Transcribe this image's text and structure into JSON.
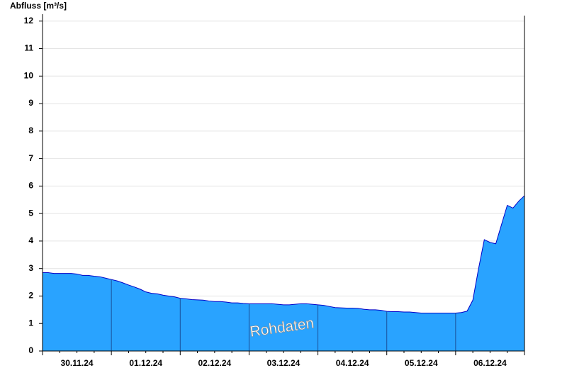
{
  "chart_data": {
    "type": "area",
    "y_label": "Abfluss [m³/s]",
    "annotation": "Rohdaten",
    "categories": [
      null,
      null,
      null,
      null,
      null,
      null,
      "30.11.24",
      null,
      null,
      null,
      null,
      null,
      null,
      null,
      null,
      null,
      null,
      null,
      "01.12.24",
      null,
      null,
      null,
      null,
      null,
      null,
      null,
      null,
      null,
      null,
      null,
      "02.12.24",
      null,
      null,
      null,
      null,
      null,
      null,
      null,
      null,
      null,
      null,
      null,
      "03.12.24",
      null,
      null,
      null,
      null,
      null,
      null,
      null,
      null,
      null,
      null,
      null,
      "04.12.24",
      null,
      null,
      null,
      null,
      null,
      null,
      null,
      null,
      null,
      null,
      null,
      "05.12.24",
      null,
      null,
      null,
      null,
      null,
      null,
      null,
      null,
      null,
      null,
      null,
      "06.12.24",
      null,
      null,
      null,
      null,
      null,
      null
    ],
    "series": [
      {
        "color": "#29a3ff",
        "line_color": "#0000c8",
        "values": [
          2.85,
          2.85,
          2.82,
          2.82,
          2.82,
          2.82,
          2.8,
          2.75,
          2.75,
          2.72,
          2.7,
          2.65,
          2.6,
          2.55,
          2.48,
          2.4,
          2.33,
          2.25,
          2.15,
          2.1,
          2.08,
          2.03,
          2.0,
          1.97,
          1.92,
          1.9,
          1.87,
          1.86,
          1.85,
          1.82,
          1.8,
          1.8,
          1.78,
          1.75,
          1.75,
          1.73,
          1.72,
          1.72,
          1.72,
          1.72,
          1.72,
          1.7,
          1.68,
          1.68,
          1.7,
          1.72,
          1.72,
          1.7,
          1.68,
          1.66,
          1.62,
          1.58,
          1.57,
          1.56,
          1.56,
          1.55,
          1.52,
          1.5,
          1.5,
          1.48,
          1.44,
          1.43,
          1.43,
          1.42,
          1.42,
          1.4,
          1.38,
          1.38,
          1.38,
          1.38,
          1.38,
          1.38,
          1.38,
          1.4,
          1.45,
          1.85,
          3.0,
          4.05,
          3.95,
          3.9,
          4.6,
          5.3,
          5.2,
          5.45,
          5.65
        ]
      }
    ],
    "ylim": [
      0,
      12.2
    ],
    "yticks": [
      0,
      1,
      2,
      3,
      4,
      5,
      6,
      7,
      8,
      9,
      10,
      11,
      12
    ],
    "grid": true
  }
}
